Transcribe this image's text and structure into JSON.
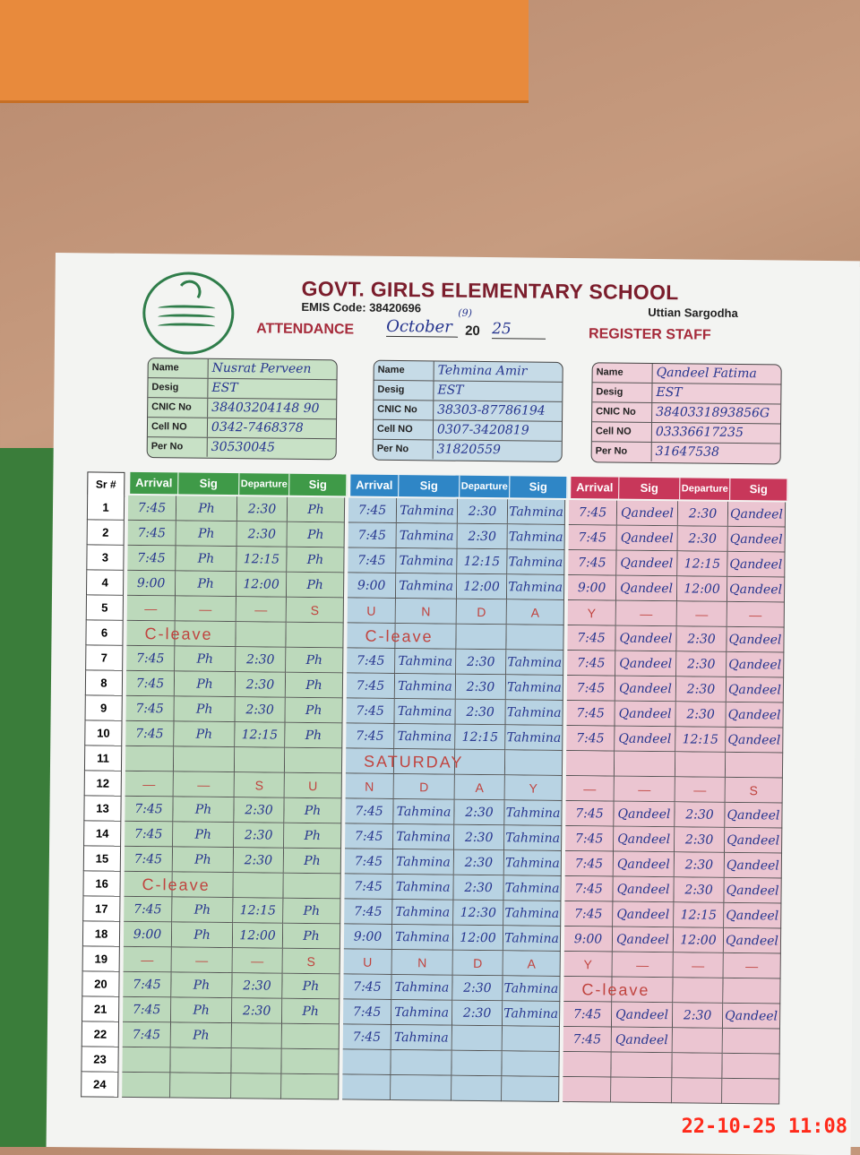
{
  "school": {
    "title": "GOVT. GIRLS ELEMENTARY SCHOOL",
    "emis": "EMIS Code: 38420696",
    "location": "Uttian Sargodha",
    "attendance_label": "ATTENDANCE",
    "month": "October",
    "year_prefix": "20",
    "year_suffix": "25",
    "margin_mark": "(9)",
    "register_label": "REGISTER STAFF"
  },
  "card_labels": [
    "Name",
    "Desig",
    "CNIC No",
    "Cell NO",
    "Per No"
  ],
  "staff": [
    {
      "name": "Nusrat Perveen",
      "desig": "EST",
      "cnic": "38403204148 90",
      "cell": "0342-7468378",
      "per": "30530045",
      "color": "#3f9a48"
    },
    {
      "name": "Tehmina Amir",
      "desig": "EST",
      "cnic": "38303-87786194",
      "cell": "0307-3420819",
      "per": "31820559",
      "color": "#2f86c6"
    },
    {
      "name": "Qandeel Fatima",
      "desig": "EST",
      "cnic": "3840331893856G",
      "cell": "03336617235",
      "per": "31647538",
      "color": "#c8375a"
    }
  ],
  "columns": {
    "sr": "Sr #",
    "arrival": "Arrival",
    "sig": "Sig",
    "departure": "Departure"
  },
  "rows": [
    {
      "sr": "1",
      "c": [
        [
          "7:45",
          "Ph",
          "2:30",
          "Ph"
        ],
        [
          "7:45",
          "Tahmina",
          "2:30",
          "Tahmina"
        ],
        [
          "7:45",
          "Qandeel",
          "2:30",
          "Qandeel"
        ]
      ]
    },
    {
      "sr": "2",
      "c": [
        [
          "7:45",
          "Ph",
          "2:30",
          "Ph"
        ],
        [
          "7:45",
          "Tahmina",
          "2:30",
          "Tahmina"
        ],
        [
          "7:45",
          "Qandeel",
          "2:30",
          "Qandeel"
        ]
      ]
    },
    {
      "sr": "3",
      "c": [
        [
          "7:45",
          "Ph",
          "12:15",
          "Ph"
        ],
        [
          "7:45",
          "Tahmina",
          "12:15",
          "Tahmina"
        ],
        [
          "7:45",
          "Qandeel",
          "12:15",
          "Qandeel"
        ]
      ]
    },
    {
      "sr": "4",
      "c": [
        [
          "9:00",
          "Ph",
          "12:00",
          "Ph"
        ],
        [
          "9:00",
          "Tahmina",
          "12:00",
          "Tahmina"
        ],
        [
          "9:00",
          "Qandeel",
          "12:00",
          "Qandeel"
        ]
      ]
    },
    {
      "sr": "5",
      "c": [
        [
          "—",
          "—",
          "—",
          "S"
        ],
        [
          "U",
          "N",
          "D",
          "A"
        ],
        [
          "Y",
          "—",
          "—",
          "—"
        ]
      ],
      "sunday": true
    },
    {
      "sr": "6",
      "c": [
        {
          "note": "C-leave"
        },
        {
          "note": "C-leave"
        },
        [
          "7:45",
          "Qandeel",
          "2:30",
          "Qandeel"
        ]
      ]
    },
    {
      "sr": "7",
      "c": [
        [
          "7:45",
          "Ph",
          "2:30",
          "Ph"
        ],
        [
          "7:45",
          "Tahmina",
          "2:30",
          "Tahmina"
        ],
        [
          "7:45",
          "Qandeel",
          "2:30",
          "Qandeel"
        ]
      ]
    },
    {
      "sr": "8",
      "c": [
        [
          "7:45",
          "Ph",
          "2:30",
          "Ph"
        ],
        [
          "7:45",
          "Tahmina",
          "2:30",
          "Tahmina"
        ],
        [
          "7:45",
          "Qandeel",
          "2:30",
          "Qandeel"
        ]
      ]
    },
    {
      "sr": "9",
      "c": [
        [
          "7:45",
          "Ph",
          "2:30",
          "Ph"
        ],
        [
          "7:45",
          "Tahmina",
          "2:30",
          "Tahmina"
        ],
        [
          "7:45",
          "Qandeel",
          "2:30",
          "Qandeel"
        ]
      ]
    },
    {
      "sr": "10",
      "c": [
        [
          "7:45",
          "Ph",
          "12:15",
          "Ph"
        ],
        [
          "7:45",
          "Tahmina",
          "12:15",
          "Tahmina"
        ],
        [
          "7:45",
          "Qandeel",
          "12:15",
          "Qandeel"
        ]
      ]
    },
    {
      "sr": "11",
      "c": [
        {
          "note": ""
        },
        {
          "note": "SATURDAY"
        },
        {
          "note": ""
        }
      ]
    },
    {
      "sr": "12",
      "c": [
        [
          "—",
          "—",
          "S",
          "U"
        ],
        [
          "N",
          "D",
          "A",
          "Y"
        ],
        [
          "—",
          "—",
          "—",
          "S"
        ]
      ],
      "sunday": true
    },
    {
      "sr": "13",
      "c": [
        [
          "7:45",
          "Ph",
          "2:30",
          "Ph"
        ],
        [
          "7:45",
          "Tahmina",
          "2:30",
          "Tahmina"
        ],
        [
          "7:45",
          "Qandeel",
          "2:30",
          "Qandeel"
        ]
      ]
    },
    {
      "sr": "14",
      "c": [
        [
          "7:45",
          "Ph",
          "2:30",
          "Ph"
        ],
        [
          "7:45",
          "Tahmina",
          "2:30",
          "Tahmina"
        ],
        [
          "7:45",
          "Qandeel",
          "2:30",
          "Qandeel"
        ]
      ]
    },
    {
      "sr": "15",
      "c": [
        [
          "7:45",
          "Ph",
          "2:30",
          "Ph"
        ],
        [
          "7:45",
          "Tahmina",
          "2:30",
          "Tahmina"
        ],
        [
          "7:45",
          "Qandeel",
          "2:30",
          "Qandeel"
        ]
      ]
    },
    {
      "sr": "16",
      "c": [
        {
          "note": "C-leave"
        },
        [
          "7:45",
          "Tahmina",
          "2:30",
          "Tahmina"
        ],
        [
          "7:45",
          "Qandeel",
          "2:30",
          "Qandeel"
        ]
      ]
    },
    {
      "sr": "17",
      "c": [
        [
          "7:45",
          "Ph",
          "12:15",
          "Ph"
        ],
        [
          "7:45",
          "Tahmina",
          "12:30",
          "Tahmina"
        ],
        [
          "7:45",
          "Qandeel",
          "12:15",
          "Qandeel"
        ]
      ]
    },
    {
      "sr": "18",
      "c": [
        [
          "9:00",
          "Ph",
          "12:00",
          "Ph"
        ],
        [
          "9:00",
          "Tahmina",
          "12:00",
          "Tahmina"
        ],
        [
          "9:00",
          "Qandeel",
          "12:00",
          "Qandeel"
        ]
      ]
    },
    {
      "sr": "19",
      "c": [
        [
          "—",
          "—",
          "—",
          "S"
        ],
        [
          "U",
          "N",
          "D",
          "A"
        ],
        [
          "Y",
          "—",
          "—",
          "—"
        ]
      ],
      "sunday": true
    },
    {
      "sr": "20",
      "c": [
        [
          "7:45",
          "Ph",
          "2:30",
          "Ph"
        ],
        [
          "7:45",
          "Tahmina",
          "2:30",
          "Tahmina"
        ],
        {
          "note": "C-leave"
        }
      ]
    },
    {
      "sr": "21",
      "c": [
        [
          "7:45",
          "Ph",
          "2:30",
          "Ph"
        ],
        [
          "7:45",
          "Tahmina",
          "2:30",
          "Tahmina"
        ],
        [
          "7:45",
          "Qandeel",
          "2:30",
          "Qandeel"
        ]
      ]
    },
    {
      "sr": "22",
      "c": [
        [
          "7:45",
          "Ph",
          "",
          ""
        ],
        [
          "7:45",
          "Tahmina",
          "",
          ""
        ],
        [
          "7:45",
          "Qandeel",
          "",
          ""
        ]
      ]
    },
    {
      "sr": "23",
      "c": [
        [
          "",
          "",
          "",
          ""
        ],
        [
          "",
          "",
          "",
          ""
        ],
        [
          "",
          "",
          "",
          ""
        ]
      ]
    },
    {
      "sr": "24",
      "c": [
        [
          "",
          "",
          "",
          ""
        ],
        [
          "",
          "",
          "",
          ""
        ],
        [
          "",
          "",
          "",
          ""
        ]
      ]
    }
  ],
  "timestamp": "22-10-25  11:08"
}
